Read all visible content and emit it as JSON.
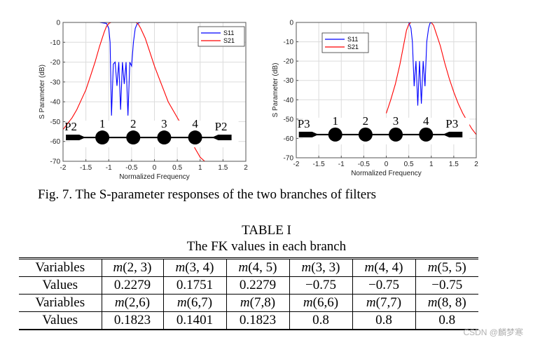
{
  "chart_data": [
    {
      "type": "line",
      "title": "",
      "xlabel": "Normalized Frequency",
      "ylabel": "S Parameter (dB)",
      "xlim": [
        -2,
        2
      ],
      "ylim": [
        -70,
        0
      ],
      "xticks": [
        "-2",
        "-1.5",
        "-1",
        "-0.5",
        "0",
        "0.5",
        "1",
        "1.5",
        "2"
      ],
      "yticks": [
        "0",
        "-10",
        "-20",
        "-30",
        "-40",
        "-50",
        "-60",
        "-70"
      ],
      "grid": true,
      "legend_position": "top-right",
      "inset": {
        "ports": [
          "P2",
          "P2"
        ],
        "resonators": [
          "1",
          "2",
          "3",
          "4"
        ]
      },
      "series": [
        {
          "name": "S11",
          "color": "#0000ff",
          "x": [
            -2.0,
            -1.2,
            -1.05,
            -1.0,
            -0.97,
            -0.94,
            -0.9,
            -0.86,
            -0.82,
            -0.78,
            -0.74,
            -0.7,
            -0.66,
            -0.62,
            -0.58,
            -0.54,
            -0.5,
            -0.46,
            -0.42,
            -0.38,
            -0.34,
            -0.3,
            -0.2,
            0.0,
            2.0
          ],
          "values": [
            0,
            0,
            -0.5,
            -3,
            -10,
            -47,
            -21,
            -20,
            -32,
            -20,
            -44,
            -20,
            -31,
            -20,
            -47,
            -20,
            -22,
            -10,
            -3,
            -0.8,
            -0.2,
            0,
            0,
            0,
            0
          ]
        },
        {
          "name": "S21",
          "color": "#ff0000",
          "x": [
            -2.0,
            -1.9,
            -1.8,
            -1.7,
            -1.6,
            -1.5,
            -1.4,
            -1.3,
            -1.2,
            -1.1,
            -1.05,
            -1.0,
            -0.95,
            -0.9,
            -0.4,
            -0.35,
            -0.3,
            -0.2,
            -0.1,
            0.0,
            0.1,
            0.2,
            0.3,
            1.0,
            1.1,
            1.2,
            1.3
          ],
          "values": [
            -54,
            -51,
            -48,
            -44,
            -39,
            -34,
            -27,
            -20,
            -12,
            -5,
            -2,
            -0.5,
            0,
            0,
            0,
            -1,
            -3,
            -8,
            -15,
            -22,
            -28,
            -34,
            -40,
            -68,
            -70,
            -72,
            -75
          ]
        }
      ]
    },
    {
      "type": "line",
      "title": "",
      "xlabel": "Normalized Frequency",
      "ylabel": "S Parameter (dB)",
      "xlim": [
        -2,
        2
      ],
      "ylim": [
        -70,
        0
      ],
      "xticks": [
        "-2",
        "-1.5",
        "-1",
        "-0.5",
        "0",
        "0.5",
        "1",
        "1.5",
        "2"
      ],
      "yticks": [
        "0",
        "-10",
        "-20",
        "-30",
        "-40",
        "-50",
        "-60",
        "-70"
      ],
      "grid": true,
      "legend_position": "top-left",
      "inset": {
        "ports": [
          "P3",
          "P3"
        ],
        "resonators": [
          "1",
          "2",
          "3",
          "4"
        ]
      },
      "series": [
        {
          "name": "S11",
          "color": "#0000ff",
          "x": [
            -2.0,
            0.0,
            0.5,
            0.55,
            0.58,
            0.62,
            0.66,
            0.7,
            0.74,
            0.78,
            0.82,
            0.86,
            0.9,
            0.94,
            0.97,
            1.0,
            1.05,
            1.2,
            2.0
          ],
          "values": [
            0,
            0,
            0,
            -3,
            -10,
            -33,
            -20,
            -43,
            -20,
            -42,
            -20,
            -33,
            -10,
            -3,
            -0.5,
            0,
            0,
            0,
            0
          ]
        },
        {
          "name": "S21",
          "color": "#ff0000",
          "x": [
            0.0,
            0.1,
            0.2,
            0.3,
            0.4,
            0.45,
            0.5,
            0.55,
            1.0,
            1.05,
            1.1,
            1.2,
            1.3,
            1.4,
            1.5,
            1.6,
            1.7,
            1.8,
            1.9,
            2.0
          ],
          "values": [
            -47,
            -40,
            -32,
            -22,
            -10,
            -4,
            -1,
            0,
            0,
            -1.5,
            -5,
            -12,
            -21,
            -29,
            -36,
            -42,
            -47,
            -51,
            -55,
            -58
          ]
        }
      ]
    }
  ],
  "caption": "Fig. 7.  The S-parameter responses of the two branches of filters",
  "table": {
    "title": "TABLE I",
    "subtitle": "The FK values in each branch",
    "rows": [
      [
        "Variables",
        "m(2, 3)",
        "m(3, 4)",
        "m(4, 5)",
        "m(3, 3)",
        "m(4, 4)",
        "m(5, 5)"
      ],
      [
        "Values",
        "0.2279",
        "0.1751",
        "0.2279",
        "−0.75",
        "−0.75",
        "−0.75"
      ],
      [
        "Variables",
        "m(2,6)",
        "m(6,7)",
        "m(7,8)",
        "m(6,6)",
        "m(7,7)",
        "m(8, 8)"
      ],
      [
        "Values",
        "0.1823",
        "0.1401",
        "0.1823",
        "0.8",
        "0.8",
        "0.8"
      ]
    ]
  },
  "watermark": "CSDN @麟梦寒"
}
